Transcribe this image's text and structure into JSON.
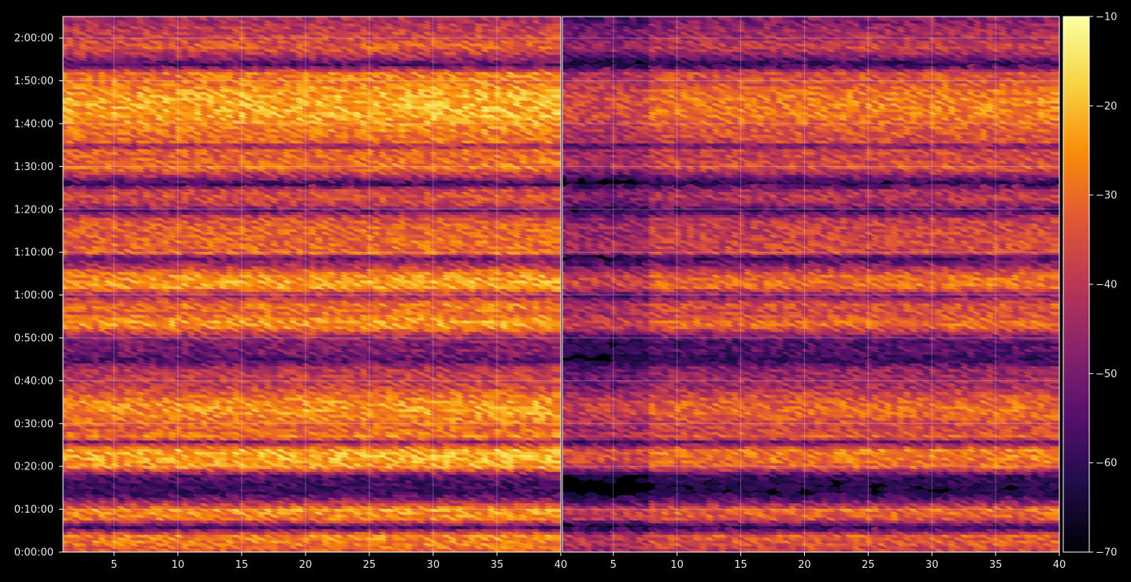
{
  "chart_data": {
    "type": "heatmap",
    "title": "",
    "colormap": "inferno",
    "background": "#000000",
    "grid": true,
    "panels": [
      {
        "name": "",
        "x_range": [
          1,
          40
        ],
        "x_ticks": [
          "5",
          "10",
          "15",
          "20",
          "25",
          "30",
          "35",
          "40"
        ]
      },
      {
        "name": "",
        "x_range": [
          1,
          40
        ],
        "x_ticks": [
          "5",
          "10",
          "15",
          "20",
          "25",
          "30",
          "35",
          "40"
        ]
      }
    ],
    "y_range_seconds": [
      0,
      7500
    ],
    "y_ticks": [
      "0:00:00",
      "0:10:00",
      "0:20:00",
      "0:30:00",
      "0:40:00",
      "0:50:00",
      "1:00:00",
      "1:10:00",
      "1:20:00",
      "1:30:00",
      "1:40:00",
      "1:50:00",
      "2:00:00"
    ],
    "colorbar": {
      "range": [
        -70,
        -10
      ],
      "ticks": [
        "−70",
        "−60",
        "−50",
        "−40",
        "−30",
        "−20",
        "−10"
      ]
    },
    "row_profile": {
      "description_times_seconds_to_level_dB": [
        [
          0,
          -36
        ],
        [
          120,
          -30
        ],
        [
          240,
          -28
        ],
        [
          360,
          -58
        ],
        [
          480,
          -30
        ],
        [
          600,
          -26
        ],
        [
          720,
          -45
        ],
        [
          840,
          -62
        ],
        [
          960,
          -60
        ],
        [
          1080,
          -55
        ],
        [
          1200,
          -28
        ],
        [
          1320,
          -24
        ],
        [
          1440,
          -24
        ],
        [
          1560,
          -48
        ],
        [
          1620,
          -28
        ],
        [
          1740,
          -34
        ],
        [
          1860,
          -30
        ],
        [
          1980,
          -26
        ],
        [
          2100,
          -27
        ],
        [
          2220,
          -32
        ],
        [
          2340,
          -40
        ],
        [
          2460,
          -40
        ],
        [
          2580,
          -42
        ],
        [
          2700,
          -58
        ],
        [
          2820,
          -50
        ],
        [
          2940,
          -52
        ],
        [
          3060,
          -42
        ],
        [
          3180,
          -26
        ],
        [
          3240,
          -26
        ],
        [
          3360,
          -32
        ],
        [
          3480,
          -30
        ],
        [
          3600,
          -45
        ],
        [
          3660,
          -36
        ],
        [
          3720,
          -26
        ],
        [
          3780,
          -25
        ],
        [
          3900,
          -28
        ],
        [
          4020,
          -42
        ],
        [
          4140,
          -55
        ],
        [
          4200,
          -33
        ],
        [
          4320,
          -32
        ],
        [
          4440,
          -33
        ],
        [
          4560,
          -33
        ],
        [
          4680,
          -36
        ],
        [
          4800,
          -55
        ],
        [
          4860,
          -42
        ],
        [
          4980,
          -36
        ],
        [
          5100,
          -40
        ],
        [
          5160,
          -62
        ],
        [
          5280,
          -44
        ],
        [
          5400,
          -30
        ],
        [
          5520,
          -33
        ],
        [
          5640,
          -33
        ],
        [
          5700,
          -48
        ],
        [
          5760,
          -32
        ],
        [
          5880,
          -30
        ],
        [
          6000,
          -28
        ],
        [
          6120,
          -24
        ],
        [
          6240,
          -24
        ],
        [
          6360,
          -24
        ],
        [
          6480,
          -26
        ],
        [
          6600,
          -30
        ],
        [
          6720,
          -30
        ],
        [
          6840,
          -58
        ],
        [
          6960,
          -44
        ],
        [
          7080,
          -34
        ],
        [
          7200,
          -38
        ],
        [
          7320,
          -40
        ],
        [
          7440,
          -44
        ]
      ]
    }
  }
}
